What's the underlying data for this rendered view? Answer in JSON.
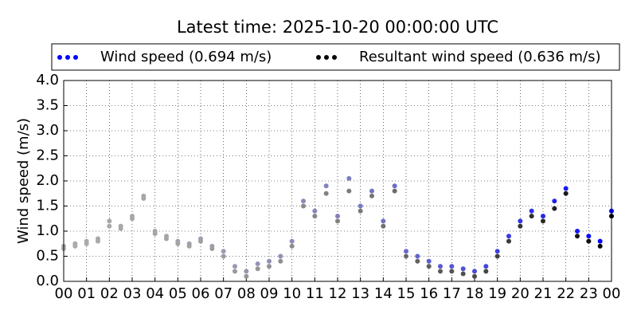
{
  "chart_data": {
    "type": "scatter",
    "title": "Latest time: 2025-10-20 00:00:00 UTC",
    "y_label": "Wind speed (m/s)",
    "x": [
      0,
      0.5,
      1,
      1.5,
      2,
      2.5,
      3,
      3.5,
      4,
      4.5,
      5,
      5.5,
      6,
      6.5,
      7,
      7.5,
      8,
      8.5,
      9,
      9.5,
      10,
      10.5,
      11,
      11.5,
      12,
      12.5,
      13,
      13.5,
      14,
      14.5,
      15,
      15.5,
      16,
      16.5,
      17,
      17.5,
      18,
      18.5,
      19,
      19.5,
      20,
      20.5,
      21,
      21.5,
      22,
      22.5,
      23,
      23.5,
      24
    ],
    "series": [
      {
        "name": "Wind speed (0.694 m/s)",
        "color": "#0000ff",
        "values": [
          0.7,
          0.75,
          0.8,
          0.85,
          1.2,
          1.1,
          1.3,
          1.7,
          1.0,
          0.9,
          0.8,
          0.75,
          0.85,
          0.7,
          0.6,
          0.3,
          0.2,
          0.35,
          0.4,
          0.5,
          0.8,
          1.6,
          1.4,
          1.9,
          1.3,
          2.05,
          1.5,
          1.8,
          1.2,
          1.9,
          0.6,
          0.5,
          0.4,
          0.3,
          0.3,
          0.25,
          0.2,
          0.3,
          0.6,
          0.9,
          1.2,
          1.4,
          1.3,
          1.6,
          1.85,
          1.0,
          0.9,
          0.8,
          1.4
        ]
      },
      {
        "name": "Resultant wind speed (0.636 m/s)",
        "color": "#000000",
        "values": [
          0.65,
          0.7,
          0.75,
          0.8,
          1.1,
          1.05,
          1.25,
          1.65,
          0.95,
          0.85,
          0.75,
          0.7,
          0.8,
          0.65,
          0.5,
          0.2,
          0.1,
          0.25,
          0.3,
          0.4,
          0.7,
          1.5,
          1.3,
          1.75,
          1.2,
          1.8,
          1.4,
          1.7,
          1.1,
          1.8,
          0.5,
          0.4,
          0.3,
          0.2,
          0.2,
          0.15,
          0.1,
          0.2,
          0.5,
          0.8,
          1.1,
          1.3,
          1.2,
          1.45,
          1.75,
          0.9,
          0.8,
          0.7,
          1.3
        ]
      }
    ],
    "xlim": [
      0,
      24
    ],
    "xticks": [
      {
        "value": 0,
        "label": "00"
      },
      {
        "value": 1,
        "label": "01"
      },
      {
        "value": 2,
        "label": "02"
      },
      {
        "value": 3,
        "label": "03"
      },
      {
        "value": 4,
        "label": "04"
      },
      {
        "value": 5,
        "label": "05"
      },
      {
        "value": 6,
        "label": "06"
      },
      {
        "value": 7,
        "label": "07"
      },
      {
        "value": 8,
        "label": "08"
      },
      {
        "value": 9,
        "label": "09"
      },
      10,
      11,
      12,
      13,
      14,
      15,
      16,
      17,
      18,
      19,
      20,
      21,
      22,
      23,
      {
        "value": 24,
        "label": "00"
      }
    ],
    "ylim": [
      0,
      4
    ],
    "yticks": [
      {
        "value": 0,
        "label": "0.0"
      },
      0.5,
      {
        "value": 1,
        "label": "1.0"
      },
      1.5,
      {
        "value": 2,
        "label": "2.0"
      },
      2.5,
      {
        "value": 3,
        "label": "3.0"
      },
      3.5,
      {
        "value": 4,
        "label": "4.0"
      }
    ],
    "grid": true,
    "legend": "top"
  }
}
